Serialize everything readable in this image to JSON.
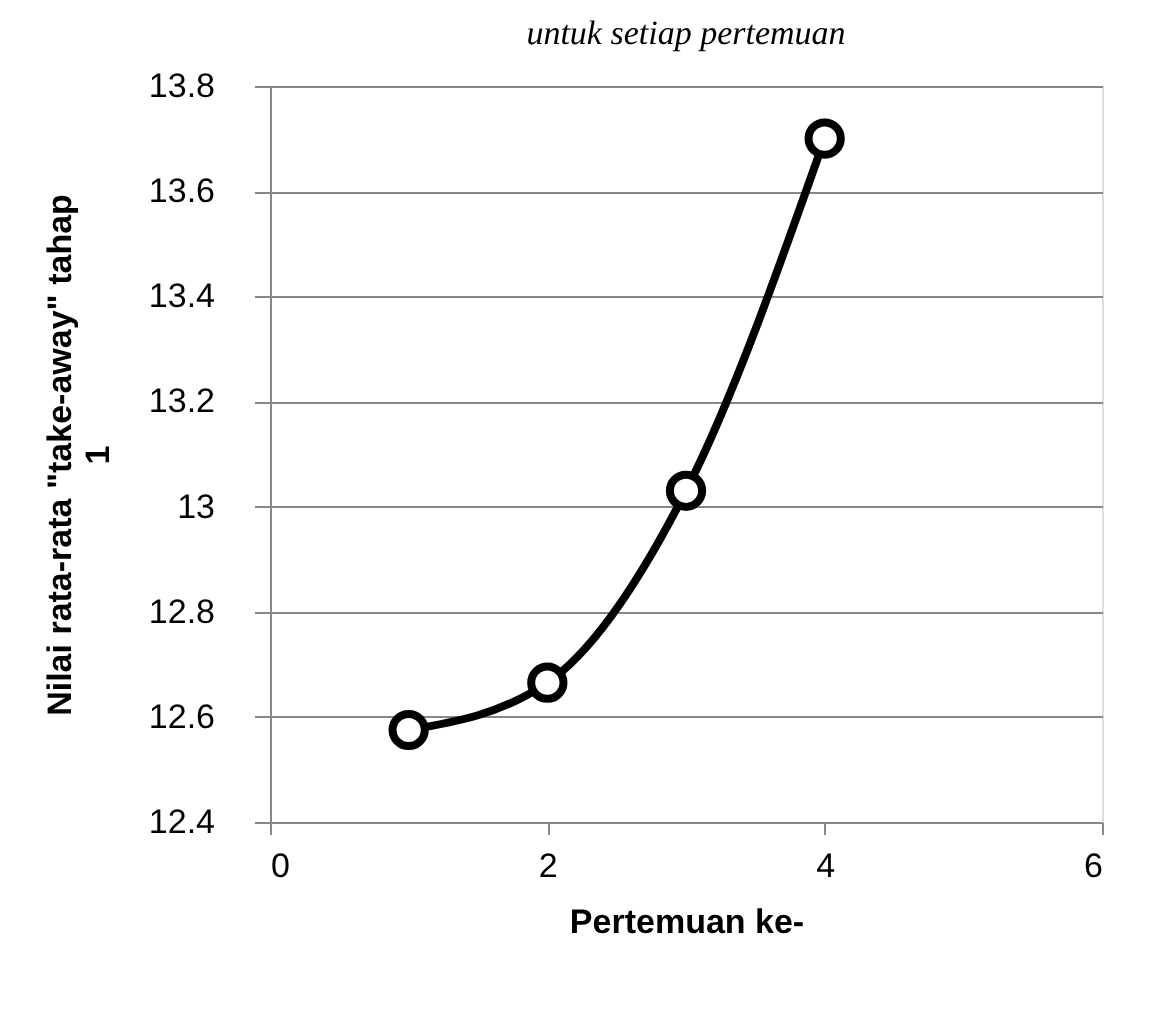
{
  "chart_data": {
    "type": "line",
    "title": "untuk setiap pertemuan",
    "xlabel": "Pertemuan ke-",
    "ylabel": "Nilai rata-rata \"take-away\" tahap 1",
    "x": [
      1,
      2,
      3,
      4
    ],
    "series": [
      {
        "color": "#000000",
        "values": [
          12.575,
          12.665,
          13.03,
          13.7
        ]
      }
    ],
    "xlim": [
      0,
      6
    ],
    "xticks": [
      0,
      2,
      4,
      6
    ],
    "ylim": [
      12.4,
      13.8
    ],
    "yticks": [
      12.4,
      12.6,
      12.8,
      13,
      13.2,
      13.4,
      13.6,
      13.8
    ],
    "grid": "y",
    "marker": "circle",
    "line_style": "solid"
  }
}
